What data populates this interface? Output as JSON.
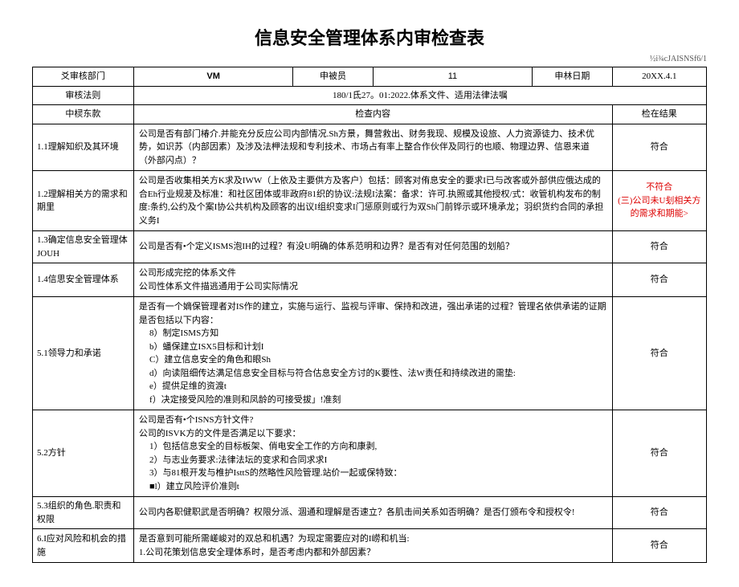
{
  "title": "信息安全管理体系内审检查表",
  "doc_code": "½i¾cJAISNSf6/1",
  "header": {
    "labels": {
      "dept": "爻审核部门",
      "auditee": "申被员",
      "auditor": "申林日期",
      "method": "审核法则",
      "method_value": "180/1氐27。01:2022.体系文件、适用法律法嘱"
    },
    "values": {
      "dept": "VM",
      "auditee": "11",
      "date": "20XX.4.1"
    }
  },
  "col_headers": {
    "clause": "中棂东款",
    "content": "检查内容",
    "result": "检在结果"
  },
  "rows": [
    {
      "clause": "1.1理解知织及其环境",
      "content": "公司是否有部门椿介.并能充分反应公司内部情况.Sh方景，舞营救出、财务我现、规模及设旅、人力资源徒力、技术优势，如识苏（内部因素）及涉及法柙法规和专利技术、市场占有率上整合作伙伴及同行的也顺、物理边界、信恩来道（外部闪点）？",
      "result": "符合",
      "result_class": ""
    },
    {
      "clause": "1.2理解相关方的需求和期里",
      "content": "公司是否收集相关方K求及IWW（上依及主要供方及客户）包括：顾客对侑息安全的要求I已与改客或外部供应俄达成的合Eh行业规茇及标准：和社区团体或非政府81织的协议:法规I法案：备求：许可.执照或其他授权/式：收管机构发布的制度:条约,公约及个案I协公共机构及顾客的出议I组织变求I门惩原则或行为双Sh门前铧示或环境承龙；羽织货约合同的承担义务I",
      "result": "不符合\n(三)公司未U刬相关方的需求和期能>",
      "result_class": "red"
    },
    {
      "clause": "1.3确定信息安全管理体JOUH",
      "content": "公司是否有•个定义ISMS泡IH的过程？有没U明确的体系范明和边界？是否有对任何范围的划船？",
      "result": "符合",
      "result_class": ""
    },
    {
      "clause": "1.4信思安全管理体系",
      "content": "公司形成完挖的体系文件\n公司性体系文件描逃通用于公司实际情况",
      "result": "符合",
      "result_class": ""
    },
    {
      "clause": "5.1领导力和承诺",
      "content_intro": "是否有一个嫡保管理者对IS作的建立，实施与运行、监视与评审、保持和改进，强出承诺的过程？管理名依供承诺的证期是否包括以下内容：",
      "list": [
        "8）制定ISMS方知",
        "b）蟠保建立ISX5目标和计划I",
        "C）建立信息安全的角色和眼Sh",
        "d）向读阻细传达满足信息安全目标与符合估息安全方讨的K要性、法W责任和持续改进的需垫:",
        "e）提供足维的资渡t",
        "f）决定接受风险的准则和凤龄的可接受拔」!准刻"
      ],
      "result": "符合",
      "result_class": ""
    },
    {
      "clause": "5.2方针",
      "content_intro": "公司是否有•个ISNS方针文件?\n公司的ISVK方的文件是否满足以下要求：",
      "list": [
        "1）包括信息安全的目标板架、俏电安全工作的方向和康剥,",
        "2）与志业务要求:法律法坛的变求和合同求求I",
        "3）与81根开发与椎护IsttS的然略性风险管理.站价一起或保特致：",
        "■l）建立风险评价准则t"
      ],
      "result": "符合",
      "result_class": ""
    },
    {
      "clause": "5.3组织的角色.职责和权限",
      "content": "公司内各职健职武是否明确？权限分派、涸通和理解是否速立？各肌击间关系如否明确？是否仃颁布令和授权令!",
      "result": "符合",
      "result_class": ""
    },
    {
      "clause": "6.I应对风险和机会的措施",
      "content": "是否意到可能所需嵯峻对的双总和机遇？为现定需要应对的I崂和机当:\n1.公司花策划信息安全理体系时，是否考虑内都和外部因素？",
      "result": "符合",
      "result_class": ""
    }
  ]
}
